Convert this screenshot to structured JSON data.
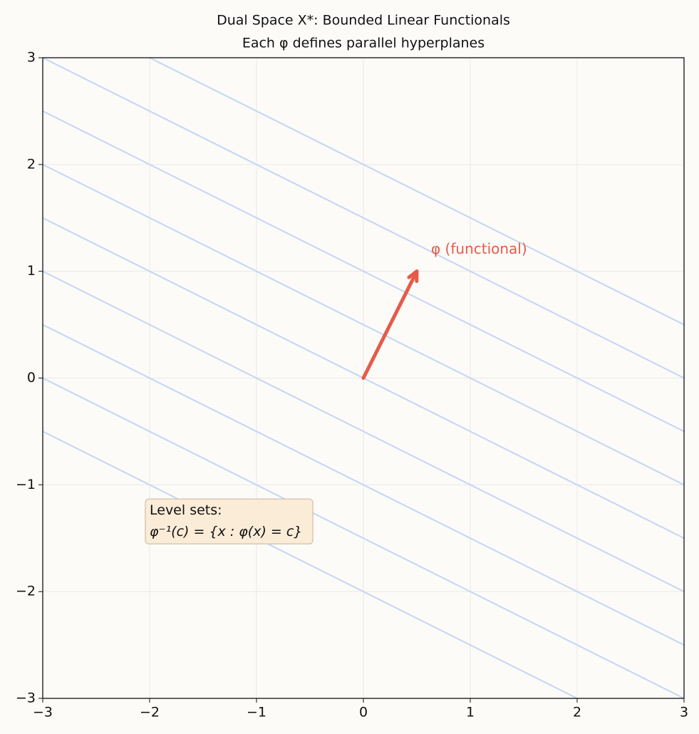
{
  "chart_data": {
    "type": "line",
    "title": "Dual Space X*: Bounded Linear Functionals",
    "subtitle": "Each φ defines parallel hyperplanes",
    "xlim": [
      -3,
      3
    ],
    "ylim": [
      -3,
      3
    ],
    "xticks": [
      {
        "value": -3,
        "label": "−3"
      },
      {
        "value": -2,
        "label": "−2"
      },
      {
        "value": -1,
        "label": "−1"
      },
      0,
      1,
      2,
      3
    ],
    "yticks": [
      {
        "value": -3,
        "label": "−3"
      },
      {
        "value": -2,
        "label": "−2"
      },
      {
        "value": -1,
        "label": "−1"
      },
      0,
      1,
      2,
      3
    ],
    "grid": true,
    "series": [
      {
        "color": "#c3d6f4",
        "x": [
          -2,
          3
        ],
        "values": [
          3,
          0.5
        ]
      },
      {
        "color": "#c3d6f4",
        "x": [
          -3,
          3
        ],
        "values": [
          3,
          0
        ]
      },
      {
        "color": "#c3d6f4",
        "x": [
          -3,
          3
        ],
        "values": [
          2.5,
          -0.5
        ]
      },
      {
        "color": "#c3d6f4",
        "x": [
          -3,
          3
        ],
        "values": [
          2,
          -1
        ]
      },
      {
        "color": "#c3d6f4",
        "x": [
          -3,
          3
        ],
        "values": [
          1.5,
          -1.5
        ]
      },
      {
        "color": "#c3d6f4",
        "x": [
          -3,
          3
        ],
        "values": [
          1,
          -2
        ]
      },
      {
        "color": "#c3d6f4",
        "x": [
          -3,
          3
        ],
        "values": [
          0.5,
          -2.5
        ]
      },
      {
        "color": "#c3d6f4",
        "x": [
          -3,
          3
        ],
        "values": [
          0,
          -3
        ]
      },
      {
        "color": "#c3d6f4",
        "x": [
          -3,
          2
        ],
        "values": [
          -0.5,
          -3
        ]
      }
    ],
    "arrow": {
      "color": "#e55b4a",
      "x": [
        0,
        0.5
      ],
      "values": [
        0,
        1
      ],
      "label": "φ (functional)"
    },
    "annotation": {
      "lines": [
        "Level sets:",
        "φ⁻¹(c) = {x : φ(x) = c}"
      ]
    }
  }
}
